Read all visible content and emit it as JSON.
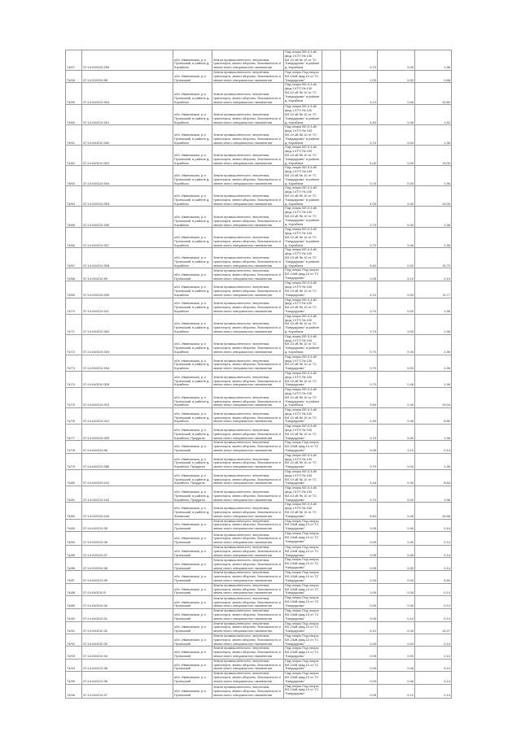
{
  "table": {
    "rows": [
      {
        "n": "74/07",
        "cad": "37:14:040210:259",
        "addr": "обл. Ивановская, р-н Пучежский, в районе д. Корабиха",
        "use": "Земли промышленности, энергетики, транспорта, земли обороны, безопасности и земли иного специального назначения",
        "desc": "Под опоры ВЛ-0,4 кВ фид.1 КТП № 100 ВЛ-10 кВ № 10 от ТС \"Кандаурово\" в районе д. Корабиха",
        "area": "0,70",
        "v1": "0,00",
        "v2": "1,96"
      },
      {
        "n": "74/08",
        "cad": "37:14:040210:58",
        "addr": "обл. Ивановская, р-н Пучежский",
        "use": "Земли промышленности, энергетики, транспорта, земли обороны, безопасности и земли иного специального назначения",
        "desc": "Под опоры Под опоры ВЛ-10кВ фид.10 от ТС \"Кандаурово\"",
        "area": "1,00",
        "v1": "0,00",
        "v2": "0,88"
      },
      {
        "n": "74/59",
        "cad": "37:14:040210:304",
        "addr": "обл. Ивановская, р-н Пучежский, в районе д. Корабиха",
        "use": "Земли промышленности, энергетики, транспорта, земли обороны, безопасности и земли иного специального назначения",
        "desc": "Под опоры ВЛ-0,4 кВ фид.1 КТП № 100 ВЛ-10 кВ № 10 от ТС \"Кандаурово\" в районе д. Корабиха",
        "area": "3,14",
        "v1": "0,46",
        "v2": "10,80"
      },
      {
        "n": "74/60",
        "cad": "37:14:040210:301",
        "addr": "обл. Ивановская, р-н Пучежский, в районе д. Корабиха",
        "use": "Земли промышленности, энергетики, транспорта, земли обороны, безопасности и земли иного специального назначения",
        "desc": "Под опоры ВЛ-0,4 кВ фид.1 КТП № 100 ВЛ-10 кВ № 10 от ТС \"Кандаурово\" в районе д. Корабиха",
        "area": "4,60",
        "v1": "0,46",
        "v2": "1,50"
      },
      {
        "n": "74/61",
        "cad": "37:14:040210:300",
        "addr": "обл. Ивановская, р-н Пучежский, в районе д. Корабиха",
        "use": "Земли промышленности, энергетики, транспорта, земли обороны, безопасности и земли иного специального назначения",
        "desc": "Под опоры ВЛ-0,4 кВ фид.1 КТП № 100 ВЛ-10 кВ № 10 от ТС \"Кандаурово\" в районе д. Корабиха",
        "area": "0,70",
        "v1": "0,00",
        "v2": "1,96"
      },
      {
        "n": "74/62",
        "cad": "37:14:040210:302",
        "addr": "обл. Ивановская, р-н Пучежский, в районе д. Корабиха",
        "use": "Земли промышленности, энергетики, транспорта, земли обороны, безопасности и земли иного специального назначения",
        "desc": "Под опоры ВЛ-0,4 кВ фид.1 КТП № 100 ВЛ-10 кВ № 10 от ТС \"Кандаурово\" в районе д. Корабиха",
        "area": "4,00",
        "v1": "0,00",
        "v2": "13,00"
      },
      {
        "n": "74/63",
        "cad": "37:14:040210:304",
        "addr": "обл. Ивановская, р-н Пучежский, в районе д. Корабиха",
        "use": "Земли промышленности, энергетики, транспорта, земли обороны, безопасности и земли иного специального назначения",
        "desc": "Под опоры ВЛ-0,4 кВ фид.1 КТП № 100 ВЛ-10 кВ № 10 от ТС \"Кандаурово\" в районе д. Корабиха",
        "area": "0,70",
        "v1": "2,00",
        "v2": "1,96"
      },
      {
        "n": "74/64",
        "cad": "37:14:040210:303",
        "addr": "обл. Ивановская, р-н Пучежский, в районе д. Корабиха",
        "use": "Земли промышленности, энергетики, транспорта, земли обороны, безопасности и земли иного специального назначения",
        "desc": "Под опоры ВЛ-0,4 кВ фид.1 КТП № 100 ВЛ-10 кВ № 10 от ТС \"Кандаурово\" в районе д. Корабиха",
        "area": "4,00",
        "v1": "2,00",
        "v2": "14,00"
      },
      {
        "n": "74/65",
        "cad": "37:14:040210:306",
        "addr": "обл. Ивановская, р-н Пучежский, в районе д. Корабиха",
        "use": "Земли промышленности, энергетики, транспорта, земли обороны, безопасности и земли иного специального назначения",
        "desc": "Под опоры ВЛ-0,4 кВ фид.1 КТП № 100 ВЛ-10 кВ № 10 от ТС \"Кандаурово\" в районе д. Корабиха",
        "area": "0,70",
        "v1": "0,00",
        "v2": "1,96"
      },
      {
        "n": "74/66",
        "cad": "37:14:040210:307",
        "addr": "обл. Ивановская, р-н Пучежский, в районе д. Корабиха",
        "use": "Земли промышленности, энергетики, транспорта, земли обороны, безопасности и земли иного специального назначения",
        "desc": "Под опоры ВЛ-0,4 кВ фид.1 КТП № 100 ВЛ-10 кВ № 10 от ТС \"Кандаурово\" в районе д. Корабиха",
        "area": "0,70",
        "v1": "0,46",
        "v2": "1,96"
      },
      {
        "n": "74/67",
        "cad": "37:14:040210:308",
        "addr": "обл. Ивановская, р-н Пучежский, в районе д. Корабиха",
        "use": "Земли промышленности, энергетики, транспорта, земли обороны, безопасности и земли иного специального назначения",
        "desc": "Под опоры ВЛ-0,4 кВ фид.1 КТП № 100 ВЛ-10 кВ № 10 от ТС \"Кандаурово\" в районе д. Корабиха",
        "area": "5,60",
        "v1": "0,00",
        "v2": "15,70"
      },
      {
        "n": "74/68",
        "cad": "37:14:040210:59",
        "addr": "обл. Ивановская, р-н Пучежский",
        "use": "Земли промышленности, энергетики, транспорта, земли обороны, безопасности и земли иного специального назначения",
        "desc": "Под опоры Под опоры ВЛ-10кВ фид.10 от ТС \"Кандаурово\"",
        "area": "0,05",
        "v1": "0,10",
        "v2": "0,14"
      },
      {
        "n": "74/69",
        "cad": "37:14:040210:309",
        "addr": "обл. Ивановская, р-н Пучежский, в районе д. Корабиха",
        "use": "Земли промышленности, энергетики, транспорта, земли обороны, безопасности и земли иного специального назначения",
        "desc": "Под опоры ВЛ-0,4 кВ фид.1 КТП № 100 ВЛ-10 кВ № 10 от ТС \"Кандаурово\"",
        "area": "4,10",
        "v1": "0,00",
        "v2": "11,77"
      },
      {
        "n": "74/70",
        "cad": "37:14:040210:311",
        "addr": "обл. Ивановская, р-н Пучежский, в районе д. Корабиха",
        "use": "Земли промышленности, энергетики, транспорта, земли обороны, безопасности и земли иного специального назначения",
        "desc": "Под опоры ВЛ-0,4 кВ фид.1 КТП № 100 ВЛ-10 кВ № 10 от ТС \"Кандаурово\"",
        "area": "0,70",
        "v1": "0,00",
        "v2": "1,96"
      },
      {
        "n": "74/71",
        "cad": "37:14:040210:302",
        "addr": "обл. Ивановская, р-н Пучежский, в районе д. Корабиха",
        "use": "Земли промышленности, энергетики, транспорта, земли обороны, безопасности и земли иного специального назначения",
        "desc": "Под опоры ВЛ-0,4 кВ фид.1 КТП № 100 ВЛ-10 кВ № 10 от ТС \"Кандаурово\" в районе д. Корабиха",
        "area": "0,70",
        "v1": "0,00",
        "v2": "1,96"
      },
      {
        "n": "74/72",
        "cad": "37:14:040210:303",
        "addr": "обл. Ивановская, р-н Пучежский, в районе д. Корабиха",
        "use": "Земли промышленности, энергетики, транспорта, земли обороны, безопасности и земли иного специального назначения",
        "desc": "Под опоры ВЛ-0,4 кВ фид.1 КТП № 100 ВЛ-10 кВ № 10 от ТС \"Кандаурово\" в районе д. Корабиха",
        "area": "0,70",
        "v1": "2,00",
        "v2": "1,96"
      },
      {
        "n": "74/73",
        "cad": "37:14:040210:304",
        "addr": "обл. Ивановская, р-н Пучежский, в районе д. Корабиха",
        "use": "Земли промышленности, энергетики, транспорта, земли обороны, безопасности и земли иного специального назначения",
        "desc": "Под опоры ВЛ-0,4 кВ фид.1 КТП № 100 ВЛ-10 кВ № 10 от ТС \"Кандаурово\"",
        "area": "0,70",
        "v1": "0,00",
        "v2": "1,96"
      },
      {
        "n": "74/74",
        "cad": "37:14:040210:305",
        "addr": "обл. Ивановская, р-н Пучежский, в районе д. Корабиха",
        "use": "Земли промышленности, энергетики, транспорта, земли обороны, безопасности и земли иного специального назначения",
        "desc": "Под опоры ВЛ-0,4 кВ фид.1 КТП № 100 ВЛ-10 кВ № 10 от ТС \"Кандаурово\"",
        "area": "0,70",
        "v1": "0,46",
        "v2": "1,96"
      },
      {
        "n": "74/75",
        "cad": "37:14:040210:310",
        "addr": "обл. Ивановская, р-н Пучежский, в районе д. Корабиха",
        "use": "Земли промышленности, энергетики, транспорта, земли обороны, безопасности и земли иного специального назначения",
        "desc": "Под опоры ВЛ-0,4 кВ фид.1 КТП № 100 ВЛ-10 кВ № 10 от ТС \"Кандаурово\" в районе д. Корабиха",
        "area": "3,60",
        "v1": "0,46",
        "v2": "10,04"
      },
      {
        "n": "74/76",
        "cad": "37:14:040210:312",
        "addr": "обл. Ивановская, р-н Пучежский, в районе д. Корабиха",
        "use": "Земли промышленности, энергетики, транспорта, земли обороны, безопасности и земли иного специального назначения",
        "desc": "Под опоры ВЛ-0,4 кВ фид.1 КТП № 100 ВЛ-10 кВ № 10 от ТС \"Кандаурово\"",
        "area": "2,40",
        "v1": "0,46",
        "v2": "6,80"
      },
      {
        "n": "74/77",
        "cad": "37:14:040210:329",
        "addr": "обл. Ивановская, р-н Пучежский, в районе д. Корабиха, Продукты",
        "use": "Земли промышленности, энергетики, транспорта, земли обороны, безопасности и земли иного специального назначения",
        "desc": "Под опоры ВЛ-0,4 кВ фид.1 КТП № 100 ВЛ-10 кВ № 10 от ТС \"Кандаурово\"",
        "area": "0,70",
        "v1": "0,00",
        "v2": "1,96"
      },
      {
        "n": "74/78",
        "cad": "37:14:040210:56",
        "addr": "обл. Ивановская, р-н Пучежский",
        "use": "Земли промышленности, энергетики, транспорта, земли обороны, безопасности и земли иного специального назначения",
        "desc": "Под опоры Под опоры ВЛ-10кВ фид.10 от ТС \"Кандаурово\"",
        "area": "0,05",
        "v1": "0,10",
        "v2": "0,14"
      },
      {
        "n": "74/79",
        "cad": "37:14:040210:286",
        "addr": "обл. Ивановская, р-н Пучежский, в районе д. Корабиха, Продукты",
        "use": "Земли промышленности, энергетики, транспорта, земли обороны, безопасности и земли иного специального назначения",
        "desc": "Под опоры ВЛ-0,4 кВ фид.1 КТП № 100 ВЛ-10 кВ № 10 от ТС \"Кандаурово\"",
        "area": "0,70",
        "v1": "0,00",
        "v2": "1,96"
      },
      {
        "n": "74/80",
        "cad": "37:14:040210:241",
        "addr": "обл. Ивановская, р-н Пучежский, в районе д. Корабиха, Продукты",
        "use": "Земли промышленности, энергетики, транспорта, земли обороны, безопасности и земли иного специального назначения",
        "desc": "Под опоры ВЛ-0,4 кВ фид.1 КТП № 100 ВЛ-10 кВ № 10 от ТС \"Кандаурово\"",
        "area": "3,16",
        "v1": "2,00",
        "v2": "8,84"
      },
      {
        "n": "74/81",
        "cad": "37:14:040210:242",
        "addr": "обл. Ивановская, р-н Пучежский, в районе д. Корабиха, Продукты",
        "use": "Земли промышленности, энергетики, транспорта, земли обороны, безопасности и земли иного специального назначения",
        "desc": "Под опоры ВЛ-0,4 кВ фид.1 КТП № 100 ВЛ-10 кВ № 10 от ТС \"Кандаурово\"",
        "area": "0,70",
        "v1": "2,00",
        "v2": "1,96"
      },
      {
        "n": "74/82",
        "cad": "37:14:040210:244",
        "addr": "обл. Ивановская, р-н Пучежский, в районе д. Фоминово",
        "use": "Земли промышленности, энергетики, транспорта, земли обороны, безопасности и земли иного специального назначения",
        "desc": "Под опоры ВЛ-0,4 кВ фид.1 КТП № 100 ВЛ-10 кВ № 10 от ТС \"Кандаурово\"",
        "area": "5,60",
        "v1": "0,46",
        "v2": "15,68"
      },
      {
        "n": "74/83",
        "cad": "37:14:040210:35",
        "addr": "обл. Ивановская, р-н Пучежский",
        "use": "Земли промышленности, энергетики, транспорта, земли обороны, безопасности и земли иного специального назначения",
        "desc": "Под опоры Под опоры ВЛ-10кВ фид.10 от ТС \"Кандаурово\"",
        "area": "0,05",
        "v1": "0,46",
        "v2": "0,14"
      },
      {
        "n": "74/84",
        "cad": "37:14:040210:36",
        "addr": "обл. Ивановская, р-н Пучежский",
        "use": "Земли промышленности, энергетики, транспорта, земли обороны, безопасности и земли иного специального назначения",
        "desc": "Под опоры Под опоры ВЛ-10кВ фид.10 от ТС \"Кандаурово\"",
        "area": "0,05",
        "v1": "0,46",
        "v2": "0,14"
      },
      {
        "n": "74/85",
        "cad": "37:14:040210:37",
        "addr": "обл. Ивановская, р-н Пучежский",
        "use": "Земли промышленности, энергетики, транспорта, земли обороны, безопасности и земли иного специального назначения",
        "desc": "Под опоры Под опоры ВЛ-10кВ фид.10 от ТС \"Кандаурово\"",
        "area": "0,05",
        "v1": "0,46",
        "v2": "0,14"
      },
      {
        "n": "74/86",
        "cad": "37:14:040210:38",
        "addr": "обл. Ивановская, р-н Пучежский",
        "use": "Земли промышленности, энергетики, транспорта, земли обороны, безопасности и земли иного специального назначения",
        "desc": "Под опоры Под опоры ВЛ-10кВ фид.10 от ТС \"Кандаурово\"",
        "area": "0,05",
        "v1": "0,00",
        "v2": "0,14"
      },
      {
        "n": "74/87",
        "cad": "37:14:040210:39",
        "addr": "обл. Ивановская, р-н Пучежский",
        "use": "Земли промышленности, энергетики, транспорта, земли обороны, безопасности и земли иного специального назначения",
        "desc": "Под опоры Под опоры ВЛ-10кВ фид.10 от ТС \"Кандаурово\"",
        "area": "2,00",
        "v1": "0,00",
        "v2": "5,60"
      },
      {
        "n": "74/88",
        "cad": "37:14:040210:5",
        "addr": "обл. Ивановская, р-н Пучежский",
        "use": "Земли промышленности, энергетики, транспорта, земли обороны, безопасности и земли иного специального назначения",
        "desc": "Под опоры Под опоры ВЛ-10кВ фид.10 от ТС \"Кандаурово\"",
        "area": "0,05",
        "v1": "0,00",
        "v2": "0,14"
      },
      {
        "n": "74/89",
        "cad": "37:14:040210:30",
        "addr": "обл. Ивановская, р-н Пучежский",
        "use": "Земли промышленности, энергетики, транспорта, земли обороны, безопасности и земли иного специального назначения",
        "desc": "Под опоры Под опоры ВЛ-10кВ фид.10 от ТС \"Кандаурово\"",
        "area": "0,05",
        "v1": "0,00",
        "v2": "0,14"
      },
      {
        "n": "74/90",
        "cad": "37:14:040210:31",
        "addr": "обл. Ивановская, р-н Пучежский",
        "use": "Земли промышленности, энергетики, транспорта, земли обороны, безопасности и земли иного специального назначения",
        "desc": "Под опоры Под опоры ВЛ-10кВ фид.10 от ТС \"Кандаурово\"",
        "area": "0,05",
        "v1": "0,10",
        "v2": "0,14"
      },
      {
        "n": "74/91",
        "cad": "37:14:040210:32",
        "addr": "обл. Ивановская, р-н Пучежский",
        "use": "Земли промышленности, энергетики, транспорта, земли обороны, безопасности и земли иного специального назначения",
        "desc": "Под опоры Под опоры ВЛ-10кВ фид.10 от ТС \"Кандаурово\"",
        "area": "5,10",
        "v1": "2,00",
        "v2": "14,27"
      },
      {
        "n": "74/92",
        "cad": "37:14:040210:33",
        "addr": "обл. Ивановская, р-н Пучежский",
        "use": "Земли промышленности, энергетики, транспорта, земли обороны, безопасности и земли иного специального назначения",
        "desc": "Под опоры Под опоры ВЛ-10кВ фид.10 от ТС \"Кандаурово\"",
        "area": "0,05",
        "v1": "0,00",
        "v2": "0,14"
      },
      {
        "n": "74/93",
        "cad": "37:14:040210:34",
        "addr": "обл. Ивановская, р-н Пучежский",
        "use": "Земли промышленности, энергетики, транспорта, земли обороны, безопасности и земли иного специального назначения",
        "desc": "Под опоры Под опоры ВЛ-10кВ фид.10 от ТС \"Кандаурово\"",
        "area": "0,05",
        "v1": "0,00",
        "v2": "0,14"
      },
      {
        "n": "74/94",
        "cad": "37:14:040210:35",
        "addr": "обл. Ивановская, р-н Пучежский",
        "use": "Земли промышленности, энергетики, транспорта, земли обороны, безопасности и земли иного специального назначения",
        "desc": "Под опоры Под опоры ВЛ-10кВ фид.10 от ТС \"Кандаурово\"",
        "area": "0,05",
        "v1": "0,46",
        "v2": "0,14"
      },
      {
        "n": "74/95",
        "cad": "37:14:040210:36",
        "addr": "обл. Ивановская, р-н Пучежский",
        "use": "Земли промышленности, энергетики, транспорта, земли обороны, безопасности и земли иного специального назначения",
        "desc": "Под опоры Под опоры ВЛ-10кВ фид.10 от ТС \"Кандаурово\"",
        "area": "0,05",
        "v1": "0,46",
        "v2": "0,14"
      },
      {
        "n": "74/96",
        "cad": "37:14:040210:37",
        "addr": "обл. Ивановская, р-н Пучежский",
        "use": "Земли промышленности, энергетики, транспорта, земли обороны, безопасности и земли иного специального назначения",
        "desc": "Под опоры Под опоры ВЛ-10кВ фид.10 от ТС \"Кандаурово\"",
        "area": "0,05",
        "v1": "0,10",
        "v2": "0,14"
      }
    ]
  }
}
